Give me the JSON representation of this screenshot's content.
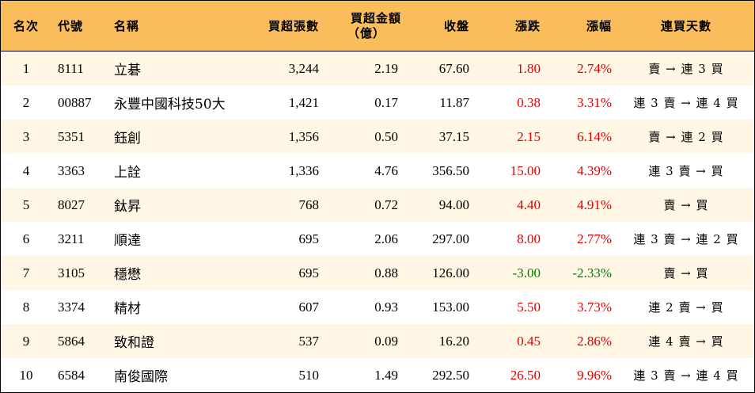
{
  "headers": {
    "rank": "名次",
    "code": "代號",
    "name": "名稱",
    "volume": "買超張數",
    "amount_line1": "買超金額",
    "amount_line2": "（億）",
    "close": "收盤",
    "change": "漲跌",
    "percent": "漲幅",
    "streak": "連買天數"
  },
  "colors": {
    "header_bg": "#f9bd5c",
    "odd_row_bg": "#fff6e6",
    "up": "#e00000",
    "down": "#008000"
  },
  "rows": [
    {
      "rank": "1",
      "code": "8111",
      "name": "立碁",
      "volume": "3,244",
      "amount": "2.19",
      "close": "67.60",
      "change": "1.80",
      "percent": "2.74%",
      "streak": "賣 → 連 3 買",
      "direction": "up"
    },
    {
      "rank": "2",
      "code": "00887",
      "name": "永豐中國科技50大",
      "volume": "1,421",
      "amount": "0.17",
      "close": "11.87",
      "change": "0.38",
      "percent": "3.31%",
      "streak": "連 3 賣 → 連 4 買",
      "direction": "up"
    },
    {
      "rank": "3",
      "code": "5351",
      "name": "鈺創",
      "volume": "1,356",
      "amount": "0.50",
      "close": "37.15",
      "change": "2.15",
      "percent": "6.14%",
      "streak": "賣 → 連 2 買",
      "direction": "up"
    },
    {
      "rank": "4",
      "code": "3363",
      "name": "上詮",
      "volume": "1,336",
      "amount": "4.76",
      "close": "356.50",
      "change": "15.00",
      "percent": "4.39%",
      "streak": "連 3 賣 → 買",
      "direction": "up"
    },
    {
      "rank": "5",
      "code": "8027",
      "name": "鈦昇",
      "volume": "768",
      "amount": "0.72",
      "close": "94.00",
      "change": "4.40",
      "percent": "4.91%",
      "streak": "賣 → 買",
      "direction": "up"
    },
    {
      "rank": "6",
      "code": "3211",
      "name": "順達",
      "volume": "695",
      "amount": "2.06",
      "close": "297.00",
      "change": "8.00",
      "percent": "2.77%",
      "streak": "連 3 賣 → 連 2 買",
      "direction": "up"
    },
    {
      "rank": "7",
      "code": "3105",
      "name": "穩懋",
      "volume": "695",
      "amount": "0.88",
      "close": "126.00",
      "change": "-3.00",
      "percent": "-2.33%",
      "streak": "賣 → 買",
      "direction": "down"
    },
    {
      "rank": "8",
      "code": "3374",
      "name": "精材",
      "volume": "607",
      "amount": "0.93",
      "close": "153.00",
      "change": "5.50",
      "percent": "3.73%",
      "streak": "連 2 賣 → 買",
      "direction": "up"
    },
    {
      "rank": "9",
      "code": "5864",
      "name": "致和證",
      "volume": "537",
      "amount": "0.09",
      "close": "16.20",
      "change": "0.45",
      "percent": "2.86%",
      "streak": "連 4 賣 → 買",
      "direction": "up"
    },
    {
      "rank": "10",
      "code": "6584",
      "name": "南俊國際",
      "volume": "510",
      "amount": "1.49",
      "close": "292.50",
      "change": "26.50",
      "percent": "9.96%",
      "streak": "連 3 賣 → 連 4 買",
      "direction": "up"
    }
  ]
}
